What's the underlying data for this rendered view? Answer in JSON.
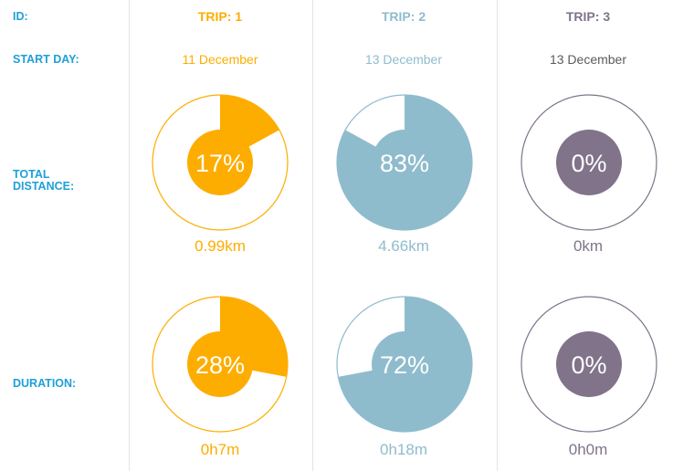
{
  "row_labels": {
    "id": "ID:",
    "start_day": "START DAY:",
    "total_distance_line1": "TOTAL",
    "total_distance_line2": "DISTANCE:",
    "duration": "DURATION:"
  },
  "colors": {
    "label_blue": "#1fa0d8",
    "divider": "#e3e3e3"
  },
  "trips": [
    {
      "id_label": "TRIP: 1",
      "start_day": "11 December",
      "color": "#fdad00",
      "distance_pct": 17,
      "distance_pct_label": "17%",
      "distance_value": "0.99km",
      "duration_pct": 28,
      "duration_pct_label": "28%",
      "duration_value": "0h7m"
    },
    {
      "id_label": "TRIP: 2",
      "start_day": "13 December",
      "color": "#8fbccd",
      "distance_pct": 83,
      "distance_pct_label": "83%",
      "distance_value": "4.66km",
      "duration_pct": 72,
      "duration_pct_label": "72%",
      "duration_value": "0h18m"
    },
    {
      "id_label": "TRIP: 3",
      "start_day": "13 December",
      "color": "#80738a",
      "distance_pct": 0,
      "distance_pct_label": "0%",
      "distance_value": "0km",
      "duration_pct": 0,
      "duration_pct_label": "0%",
      "duration_value": "0h0m"
    }
  ],
  "chart_data": {
    "type": "pie",
    "categories": [
      "TRIP: 1",
      "TRIP: 2",
      "TRIP: 3"
    ],
    "series": [
      {
        "name": "TOTAL DISTANCE:",
        "values": [
          17,
          83,
          0
        ],
        "labels": [
          "0.99km",
          "4.66km",
          "0km"
        ]
      },
      {
        "name": "DURATION:",
        "values": [
          28,
          72,
          0
        ],
        "labels": [
          "0h7m",
          "0h18m",
          "0h0m"
        ]
      }
    ],
    "start_days": [
      "11 December",
      "13 December",
      "13 December"
    ]
  }
}
